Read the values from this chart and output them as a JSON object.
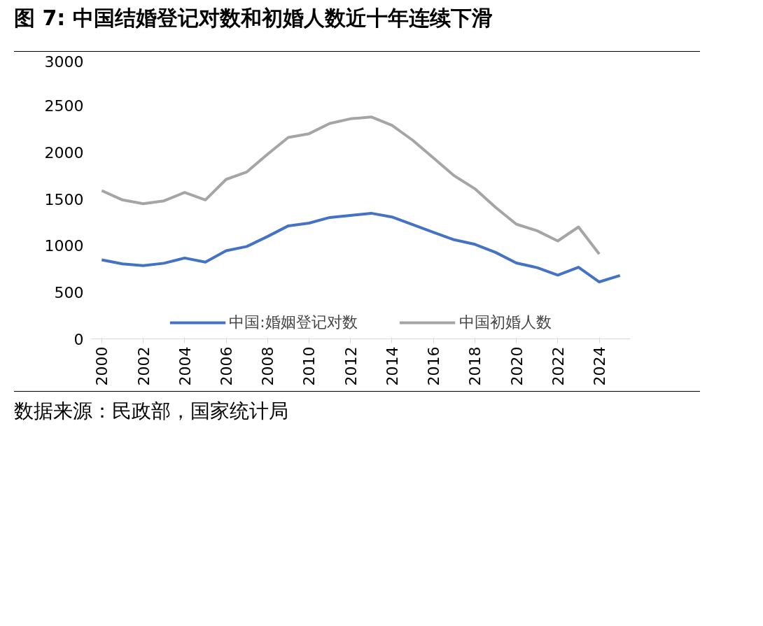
{
  "chart_data": {
    "type": "line",
    "title": "图 7: 中国结婚登记对数和初婚人数近十年连续下滑",
    "x": [
      2000,
      2001,
      2002,
      2003,
      2004,
      2005,
      2006,
      2007,
      2008,
      2009,
      2010,
      2011,
      2012,
      2013,
      2014,
      2015,
      2016,
      2017,
      2018,
      2019,
      2020,
      2021,
      2022,
      2023,
      2024,
      2025
    ],
    "series": [
      {
        "name": "中国:婚姻登记对数",
        "color": "#4472c4",
        "values": [
          848,
          805,
          786,
          811,
          867,
          823,
          945,
          991,
          1098,
          1212,
          1241,
          1302,
          1324,
          1347,
          1307,
          1225,
          1143,
          1063,
          1014,
          927,
          814,
          764,
          684,
          768,
          611,
          680
        ]
      },
      {
        "name": "中国初婚人数",
        "color": "#a5a5a5",
        "values": [
          1590,
          1490,
          1450,
          1480,
          1570,
          1490,
          1710,
          1790,
          1980,
          2160,
          2200,
          2310,
          2360,
          2380,
          2290,
          2130,
          1940,
          1750,
          1610,
          1410,
          1230,
          1160,
          1050,
          1200,
          910,
          null
        ]
      }
    ],
    "xlim": [
      1999.5,
      2025.5
    ],
    "xticks": [
      2000,
      2002,
      2004,
      2006,
      2008,
      2010,
      2012,
      2014,
      2016,
      2018,
      2020,
      2022,
      2024
    ],
    "ylim": [
      0,
      3000
    ],
    "yticks": [
      0,
      500,
      1000,
      1500,
      2000,
      2500,
      3000
    ],
    "grid": false,
    "legend": "bottom",
    "marker": "none",
    "line_style": "solid",
    "annotations": [
      "数据来源：民政部，国家统计局"
    ]
  }
}
